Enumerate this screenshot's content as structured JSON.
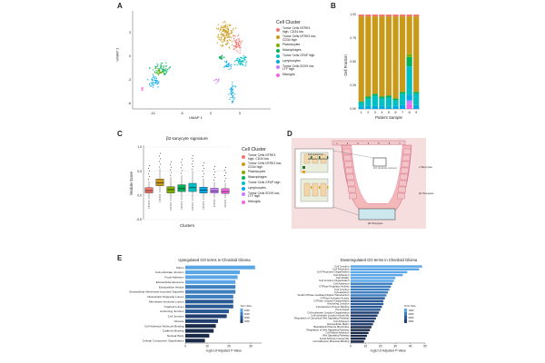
{
  "panels": {
    "a": "A",
    "b": "B",
    "c": "C",
    "d": "D",
    "e": "E"
  },
  "cell_clusters": {
    "title": "Cell Cluster",
    "items": [
      {
        "label": "Tumor Cells NTRK3 high, CD34 low",
        "color": "#f4766f"
      },
      {
        "label": "Tumor Cells NTRK3 low, CD34 high",
        "color": "#c99a1a"
      },
      {
        "label": "Plasmocytes",
        "color": "#7cae00"
      },
      {
        "label": "Macrophages",
        "color": "#00b35a"
      },
      {
        "label": "Tumor Cells GFAP high",
        "color": "#00bfc4"
      },
      {
        "label": "Lymphocytes",
        "color": "#00a8e8"
      },
      {
        "label": "Tumor Cells SOX9 low, LTF high",
        "color": "#c77cff"
      },
      {
        "label": "Microglia",
        "color": "#f564e3"
      }
    ]
  },
  "umap": {
    "xlabel": "UMAP 1",
    "ylabel": "UMAP 2",
    "xticks": [
      "-10",
      "-5",
      "0",
      "5"
    ],
    "yticks": [
      "3",
      "0",
      "-3",
      "-6"
    ]
  },
  "chart_data": [
    {
      "type": "bar",
      "id": "B",
      "title": "",
      "xlabel": "Patient Sample",
      "ylabel": "Cell Fraction",
      "categories": [
        "1",
        "2",
        "3",
        "4",
        "5",
        "6",
        "7",
        "8",
        "9"
      ],
      "ylim": [
        0,
        1
      ],
      "yticks": [
        "0.00",
        "0.25",
        "0.50",
        "0.75",
        "1.00"
      ],
      "series": [
        {
          "name": "Microglia",
          "color": "#f564e3",
          "values": [
            0.0,
            0.0,
            0.0,
            0.0,
            0.0,
            0.0,
            0.0,
            0.05,
            0.0
          ]
        },
        {
          "name": "Tumor Cells SOX9 low, LTF high",
          "color": "#c77cff",
          "values": [
            0.0,
            0.0,
            0.0,
            0.0,
            0.0,
            0.0,
            0.0,
            0.04,
            0.0
          ]
        },
        {
          "name": "Lymphocytes",
          "color": "#00a8e8",
          "values": [
            0.02,
            0.03,
            0.03,
            0.03,
            0.02,
            0.03,
            0.04,
            0.06,
            0.04
          ]
        },
        {
          "name": "Tumor Cells GFAP high",
          "color": "#00bfc4",
          "values": [
            0.05,
            0.08,
            0.11,
            0.08,
            0.1,
            0.06,
            0.12,
            0.3,
            0.12
          ]
        },
        {
          "name": "Macrophages",
          "color": "#00b35a",
          "values": [
            0.01,
            0.02,
            0.02,
            0.02,
            0.02,
            0.02,
            0.02,
            0.1,
            0.02
          ]
        },
        {
          "name": "Plasmocytes",
          "color": "#7cae00",
          "values": [
            0.0,
            0.0,
            0.0,
            0.0,
            0.0,
            0.0,
            0.0,
            0.03,
            0.0
          ]
        },
        {
          "name": "Tumor Cells NTRK3 low, CD34 high",
          "color": "#c99a1a",
          "values": [
            0.9,
            0.85,
            0.82,
            0.85,
            0.84,
            0.87,
            0.8,
            0.4,
            0.8
          ]
        },
        {
          "name": "Tumor Cells NTRK3 high, CD34 low",
          "color": "#f4766f",
          "values": [
            0.02,
            0.02,
            0.02,
            0.02,
            0.02,
            0.02,
            0.02,
            0.02,
            0.02
          ]
        }
      ]
    },
    {
      "type": "box",
      "id": "C",
      "title": "β2-tanycyte signature",
      "xlabel": "Clusters",
      "ylabel": "Module Score",
      "ylim": [
        -0.5,
        1.0
      ],
      "yticks": [
        "1.0",
        "0.5",
        "0.0",
        "-0.5"
      ],
      "boxes": [
        {
          "name": "Tumor Cells NTRK3 high, CD34 low",
          "color": "#f4766f",
          "q1": 0.05,
          "median": 0.1,
          "q3": 0.16,
          "whislo": -0.08,
          "whishi": 0.3
        },
        {
          "name": "Tumor Cells NTRK3 low, CD34 high",
          "color": "#c99a1a",
          "q1": 0.2,
          "median": 0.26,
          "q3": 0.34,
          "whislo": 0.05,
          "whishi": 0.55
        },
        {
          "name": "Plasmocytes",
          "color": "#7cae00",
          "q1": 0.05,
          "median": 0.12,
          "q3": 0.18,
          "whislo": -0.12,
          "whishi": 0.38
        },
        {
          "name": "Macrophages",
          "color": "#00b35a",
          "q1": 0.08,
          "median": 0.14,
          "q3": 0.22,
          "whislo": -0.1,
          "whishi": 0.42
        },
        {
          "name": "Tumor Cells GFAP high",
          "color": "#00bfc4",
          "q1": 0.08,
          "median": 0.16,
          "q3": 0.25,
          "whislo": -0.12,
          "whishi": 0.5
        },
        {
          "name": "Lymphocytes",
          "color": "#00a8e8",
          "q1": 0.05,
          "median": 0.11,
          "q3": 0.17,
          "whislo": -0.1,
          "whishi": 0.35
        },
        {
          "name": "Tumor Cells SOX9 low, LTF high",
          "color": "#c77cff",
          "q1": 0.05,
          "median": 0.09,
          "q3": 0.15,
          "whislo": -0.05,
          "whishi": 0.28
        },
        {
          "name": "Microglia",
          "color": "#f564e3",
          "q1": 0.04,
          "median": 0.08,
          "q3": 0.14,
          "whislo": -0.06,
          "whishi": 0.26
        }
      ]
    },
    {
      "type": "bar",
      "orientation": "horizontal",
      "id": "E-left",
      "title": "Upregulated GO terms in Chordoid Glioma",
      "xlabel": "-log10 of Adjusted P-Value",
      "xlim": [
        0,
        35
      ],
      "xticks": [
        "0",
        "10",
        "20",
        "30"
      ],
      "legend_title": "Term Size",
      "legend_ticks": [
        "1000",
        "2000",
        "3000",
        "4000"
      ],
      "categories": [
        "Cilium",
        "Cell-substrate Junction",
        "Focal Adhesion",
        "Extracellular Exosome",
        "Extracellular Vesicle",
        "Extracellular Membrane-bounded Organelle",
        "Intracellular Organelle Lumen",
        "Membrane-enclosed Lumen",
        "Organell Lumen",
        "Anchoring Junction",
        "Cell Junction",
        "Vacuole",
        "Cell Adhesion Molecule Binding",
        "Cadherin Binding",
        "Nuclear Body",
        "Cellular Component Organisation"
      ],
      "values": [
        32,
        25,
        24,
        23,
        23,
        23,
        22,
        22,
        22,
        20,
        19,
        15,
        14,
        13,
        11,
        9
      ]
    },
    {
      "type": "bar",
      "orientation": "horizontal",
      "id": "E-right",
      "title": "Downregulated GO terms in Chordoid Glioma",
      "xlabel": "-log10 of Adjusted P-Value",
      "xlim": [
        0,
        50
      ],
      "xticks": [
        "0",
        "10",
        "20",
        "30",
        "40",
        "50"
      ],
      "legend_title": "Term Size",
      "legend_ticks": [
        "1000",
        "2000",
        "3000",
        "4000"
      ],
      "categories": [
        "Cell Junction",
        "Cell Projection",
        "Cell Projection Organisation",
        "Cell Adhesion",
        "Cell Motility",
        "Cell Junction Organisation",
        "Cell Adhesion",
        "GTPase Regulator Activity",
        "Cell Junction",
        "Cytoskeleton",
        "Small GTPase-mediated Signal Transduction",
        "GTPase Activator Activity",
        "GTPase Junction Organisation",
        "Anchoring Junction",
        "Cytoskeleton Protein Binding",
        "Presynapse",
        "Cell-substrate Junction Organisation",
        "Cell-substrate Junction Assembly",
        "Regulation of Canonical Wnt Signaling Pathway",
        "Cell Adhesion",
        "Extracellular Matrix",
        "Basolateral Plasma Membrane",
        "Regulation of Wnt Signaling Pathway",
        "Cell Matrix Adhesion",
        "Wnt Signaling Pathway",
        "Focal Adhesion Assembly",
        "Cell Adhesion Molecule Binding"
      ],
      "values": [
        48,
        46,
        38,
        35,
        30,
        29,
        28,
        27,
        26,
        25,
        24,
        23,
        22,
        22,
        21,
        20,
        19,
        18,
        17,
        16,
        15,
        14,
        13,
        12,
        11,
        10,
        9
      ]
    }
  ],
  "diagram_d": {
    "labels": {
      "alpha": "α Tanycytes",
      "beta1": "β1 Tanycytes",
      "beta2": "β2 Tanycytes",
      "third_ventricle": "3rd Ventricle (lumen)",
      "tight_junctions": "Tight junctions",
      "adhesion_junctions": "Adhesion junctions"
    },
    "ruler_numbers": [
      "1",
      "2",
      "3",
      "4",
      "5",
      "6",
      "7"
    ]
  }
}
